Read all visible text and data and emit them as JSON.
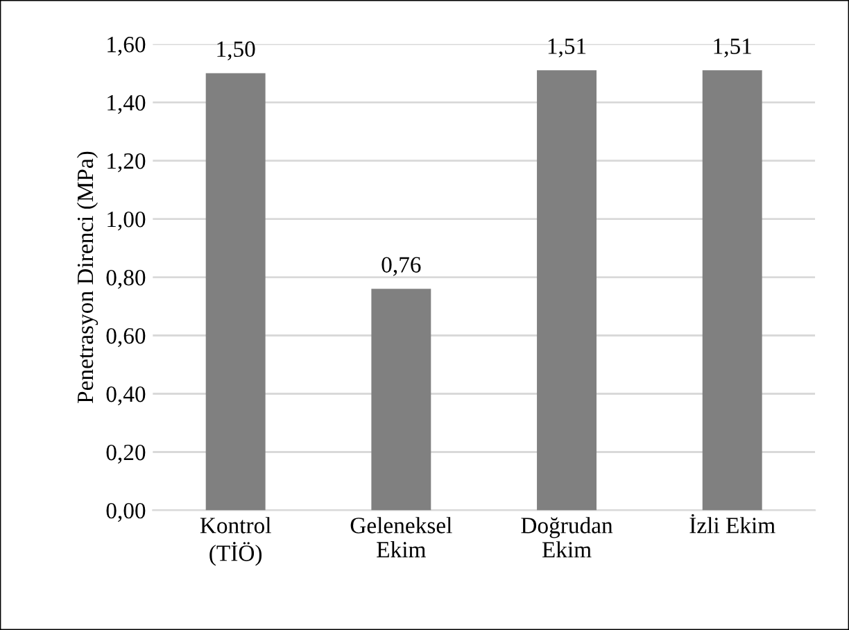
{
  "chart_data": {
    "type": "bar",
    "ylabel": "Penetrasyon Direnci (MPa)",
    "categories": [
      "Kontrol\n(TİÖ)",
      "Geleneksel\nEkim",
      "Doğrudan\nEkim",
      "İzli Ekim"
    ],
    "values": [
      1.5,
      0.76,
      1.51,
      1.51
    ],
    "value_labels": [
      "1,50",
      "0,76",
      "1,51",
      "1,51"
    ],
    "color": "#808080",
    "ylim": [
      0,
      1.6
    ],
    "yticks": [
      {
        "value": 0,
        "label": "0,00"
      },
      {
        "value": 0.2,
        "label": "0,20"
      },
      {
        "value": 0.4,
        "label": "0,40"
      },
      {
        "value": 0.6,
        "label": "0,60"
      },
      {
        "value": 0.8,
        "label": "0,80"
      },
      {
        "value": 1.0,
        "label": "1,00"
      },
      {
        "value": 1.2,
        "label": "1,20"
      },
      {
        "value": 1.4,
        "label": "1,40"
      },
      {
        "value": 1.6,
        "label": "1,60"
      }
    ],
    "grid": "y",
    "legend": false
  }
}
